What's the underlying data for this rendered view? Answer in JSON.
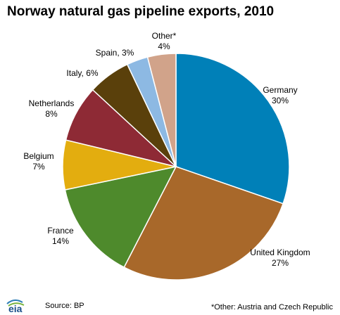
{
  "title": "Norway natural gas pipeline exports, 2010",
  "source": "Source: BP",
  "note": "*Other: Austria and Czech Republic",
  "logo_text": "eia",
  "chart_data": {
    "type": "pie",
    "title": "Norway natural gas pipeline exports, 2010",
    "slices": [
      {
        "label": "Germany",
        "value_label": "30%",
        "value": 30,
        "color": "#0080b8"
      },
      {
        "label": "United Kingdom",
        "value_label": "27%",
        "value": 27,
        "color": "#a8682a"
      },
      {
        "label": "France",
        "value_label": "14%",
        "value": 14,
        "color": "#4e8a2c"
      },
      {
        "label": "Belgium",
        "value_label": "7%",
        "value": 7,
        "color": "#e3ad0f"
      },
      {
        "label": "Netherlands",
        "value_label": "8%",
        "value": 8,
        "color": "#8e2a35"
      },
      {
        "label": "Italy",
        "value_label": "6%",
        "value": 6,
        "color": "#5a400b"
      },
      {
        "label": "Spain",
        "value_label": "3%",
        "value": 3,
        "color": "#8db9e3"
      },
      {
        "label": "Other*",
        "value_label": "4%",
        "value": 4,
        "color": "#d1a38a"
      }
    ]
  }
}
